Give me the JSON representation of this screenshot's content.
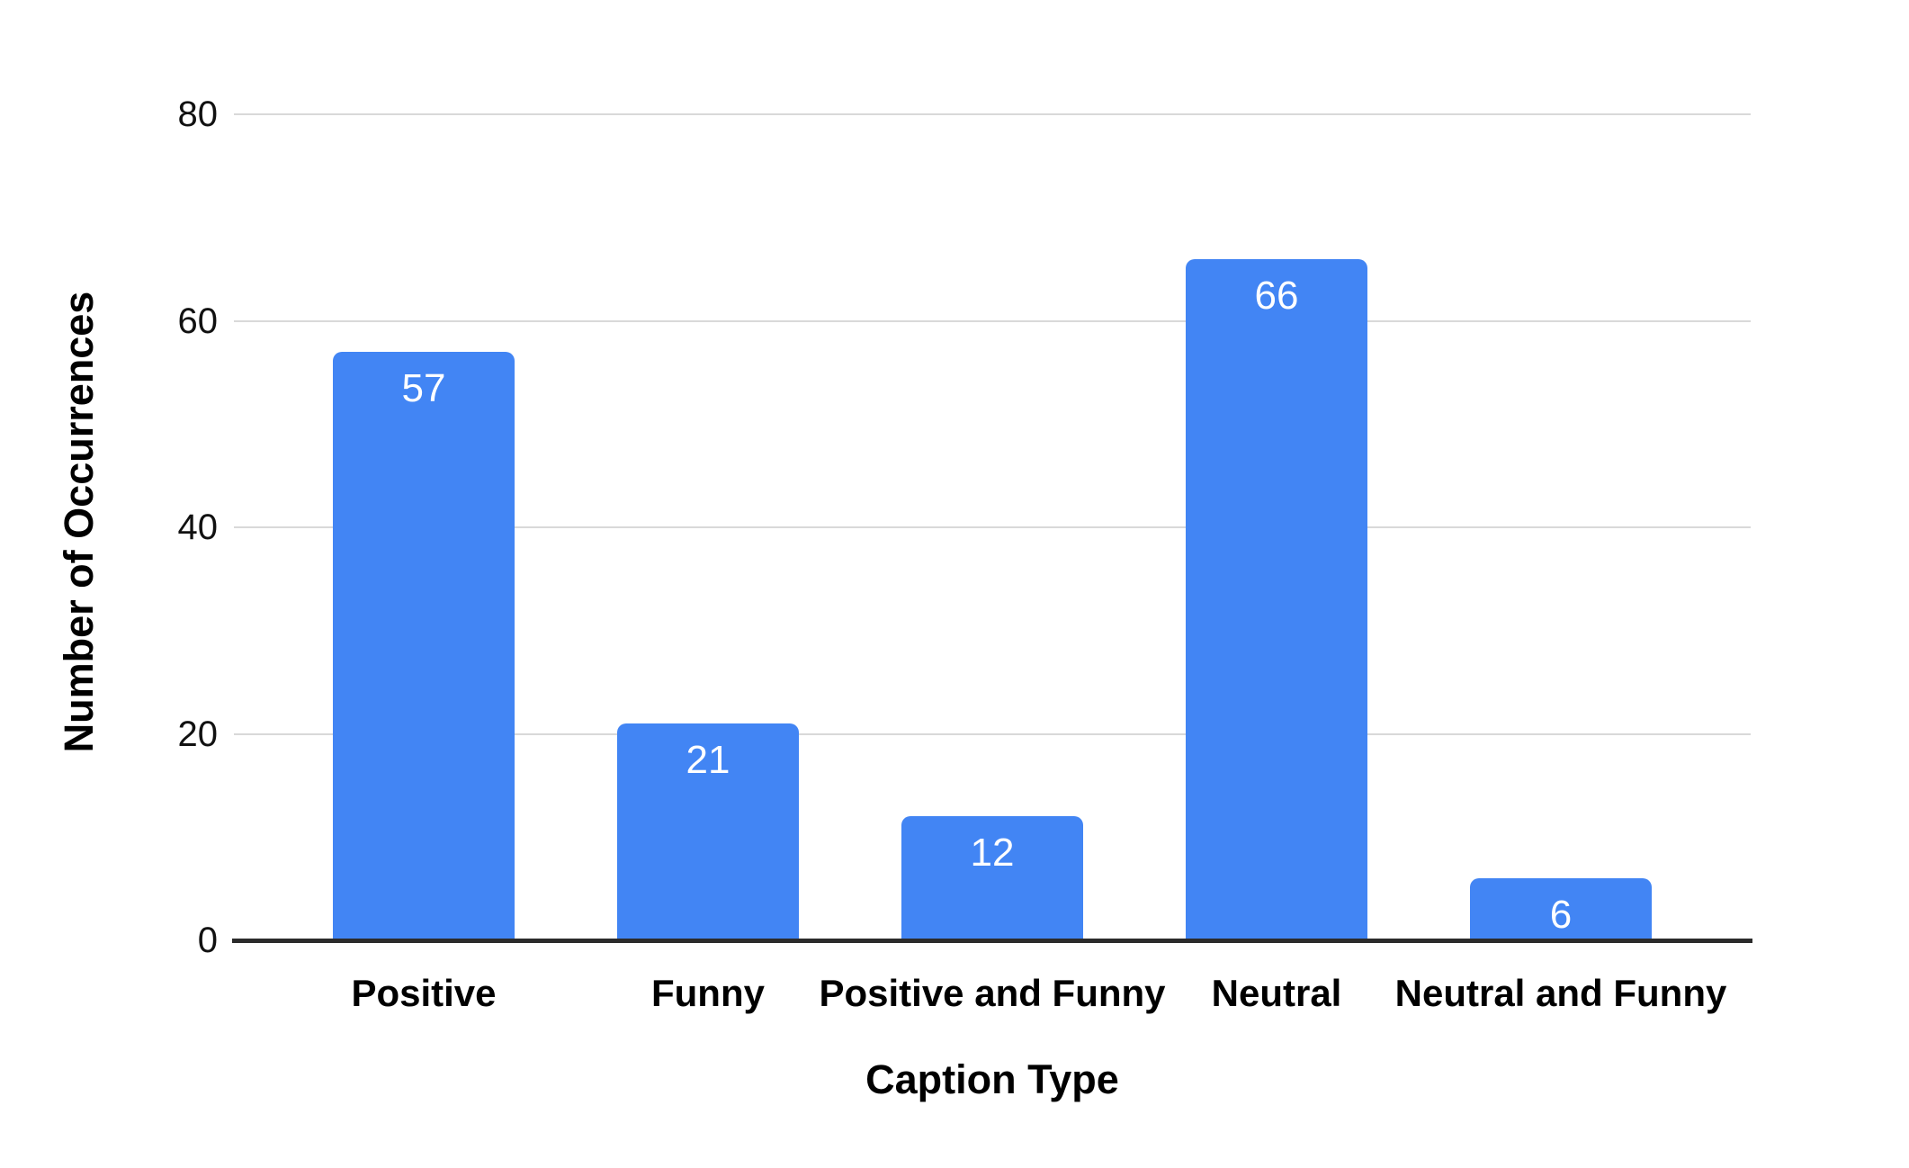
{
  "chart_data": {
    "type": "bar",
    "title": "",
    "xlabel": "Caption Type",
    "ylabel": "Number of Occurrences",
    "categories": [
      "Positive",
      "Funny",
      "Positive and Funny",
      "Neutral",
      "Neutral and Funny"
    ],
    "values": [
      57,
      21,
      12,
      66,
      6
    ],
    "data_labels_shown": true,
    "ylim": [
      0,
      80
    ],
    "yticks": [
      0,
      20,
      40,
      60,
      80
    ],
    "grid": true,
    "legend_position": "none",
    "bar_color": "#4285f4",
    "data_label_color": "#ffffff",
    "gridline_color": "#d9d9d9",
    "axis_line_color": "#2b2b2b",
    "tick_label_color": "#111111",
    "background_color": "#ffffff"
  }
}
